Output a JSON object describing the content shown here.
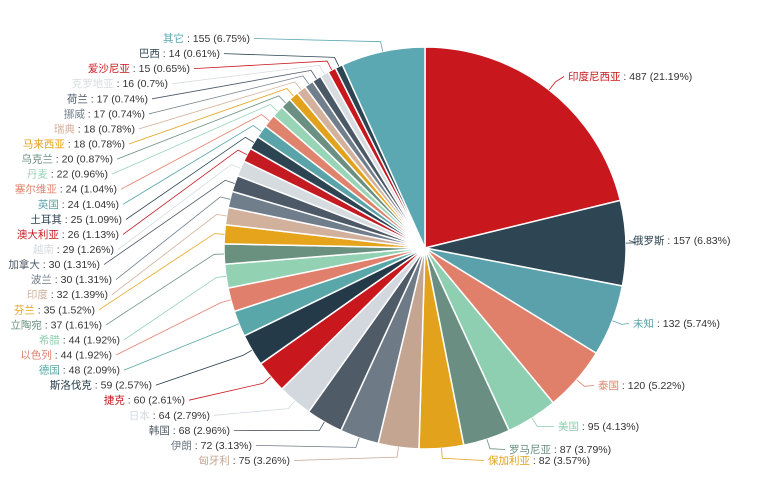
{
  "chart_data": {
    "type": "pie",
    "title": "",
    "start_angle_deg": 90,
    "direction": "clockwise",
    "slices": [
      {
        "name": "印度尼西亚",
        "value": 487,
        "percent": "21.19%",
        "color": "#c8171d",
        "side": "right"
      },
      {
        "name": "俄罗斯",
        "value": 157,
        "percent": "6.83%",
        "color": "#2e4654",
        "side": "right"
      },
      {
        "name": "未知",
        "value": 132,
        "percent": "5.74%",
        "color": "#5aa1ac",
        "side": "right"
      },
      {
        "name": "泰国",
        "value": 120,
        "percent": "5.22%",
        "color": "#e0806a",
        "side": "right"
      },
      {
        "name": "美国",
        "value": 95,
        "percent": "4.13%",
        "color": "#8fcfb1",
        "side": "right"
      },
      {
        "name": "罗马尼亚",
        "value": 87,
        "percent": "3.79%",
        "color": "#6a8f82",
        "side": "right"
      },
      {
        "name": "保加利亚",
        "value": 82,
        "percent": "3.57%",
        "color": "#e3a21b",
        "side": "right"
      },
      {
        "name": "匈牙利",
        "value": 75,
        "percent": "3.26%",
        "color": "#c4a592",
        "side": "left"
      },
      {
        "name": "伊朗",
        "value": 72,
        "percent": "3.13%",
        "color": "#6f7a87",
        "side": "left"
      },
      {
        "name": "韩国",
        "value": 68,
        "percent": "2.96%",
        "color": "#4f5b67",
        "side": "left"
      },
      {
        "name": "日本",
        "value": 64,
        "percent": "2.79%",
        "color": "#d3d8de",
        "side": "left"
      },
      {
        "name": "捷克",
        "value": 60,
        "percent": "2.61%",
        "color": "#c8171d",
        "side": "left"
      },
      {
        "name": "斯洛伐克",
        "value": 59,
        "percent": "2.57%",
        "color": "#243a48",
        "side": "left"
      },
      {
        "name": "德国",
        "value": 48,
        "percent": "2.09%",
        "color": "#59a7a8",
        "side": "left"
      },
      {
        "name": "以色列",
        "value": 44,
        "percent": "1.92%",
        "color": "#e07f6c",
        "side": "left"
      },
      {
        "name": "希腊",
        "value": 44,
        "percent": "1.92%",
        "color": "#93d1b3",
        "side": "left"
      },
      {
        "name": "立陶宛",
        "value": 37,
        "percent": "1.61%",
        "color": "#6a9180",
        "side": "left"
      },
      {
        "name": "芬兰",
        "value": 35,
        "percent": "1.52%",
        "color": "#e6a41c",
        "side": "left"
      },
      {
        "name": "印度",
        "value": 32,
        "percent": "1.39%",
        "color": "#d1b09c",
        "side": "left"
      },
      {
        "name": "波兰",
        "value": 30,
        "percent": "1.31%",
        "color": "#707d8b",
        "side": "left"
      },
      {
        "name": "加拿大",
        "value": 30,
        "percent": "1.31%",
        "color": "#4d5966",
        "side": "left"
      },
      {
        "name": "越南",
        "value": 29,
        "percent": "1.26%",
        "color": "#d6dbe0",
        "side": "left"
      },
      {
        "name": "澳大利亚",
        "value": 26,
        "percent": "1.13%",
        "color": "#c41a22",
        "side": "left"
      },
      {
        "name": "土耳其",
        "value": 25,
        "percent": "1.09%",
        "color": "#2d4452",
        "side": "left"
      },
      {
        "name": "英国",
        "value": 24,
        "percent": "1.04%",
        "color": "#5aa3a9",
        "side": "left"
      },
      {
        "name": "塞尔维亚",
        "value": 24,
        "percent": "1.04%",
        "color": "#e0836d",
        "side": "left"
      },
      {
        "name": "丹麦",
        "value": 22,
        "percent": "0.96%",
        "color": "#97d5b6",
        "side": "left"
      },
      {
        "name": "乌克兰",
        "value": 20,
        "percent": "0.87%",
        "color": "#6b9081",
        "side": "left"
      },
      {
        "name": "马来西亚",
        "value": 18,
        "percent": "0.78%",
        "color": "#e3a21b",
        "side": "left"
      },
      {
        "name": "瑞典",
        "value": 18,
        "percent": "0.78%",
        "color": "#d4b19c",
        "side": "left"
      },
      {
        "name": "挪威",
        "value": 17,
        "percent": "0.74%",
        "color": "#717f8c",
        "side": "left"
      },
      {
        "name": "荷兰",
        "value": 17,
        "percent": "0.74%",
        "color": "#4b5866",
        "side": "left"
      },
      {
        "name": "克罗地亚",
        "value": 16,
        "percent": "0.7%",
        "color": "#d7dce1",
        "side": "left"
      },
      {
        "name": "爱沙尼亚",
        "value": 15,
        "percent": "0.65%",
        "color": "#c8171d",
        "side": "left"
      },
      {
        "name": "巴西",
        "value": 14,
        "percent": "0.61%",
        "color": "#2d4553",
        "side": "left"
      },
      {
        "name": "其它",
        "value": 155,
        "percent": "6.75%",
        "color": "#5ba8b3",
        "side": "left"
      }
    ]
  }
}
